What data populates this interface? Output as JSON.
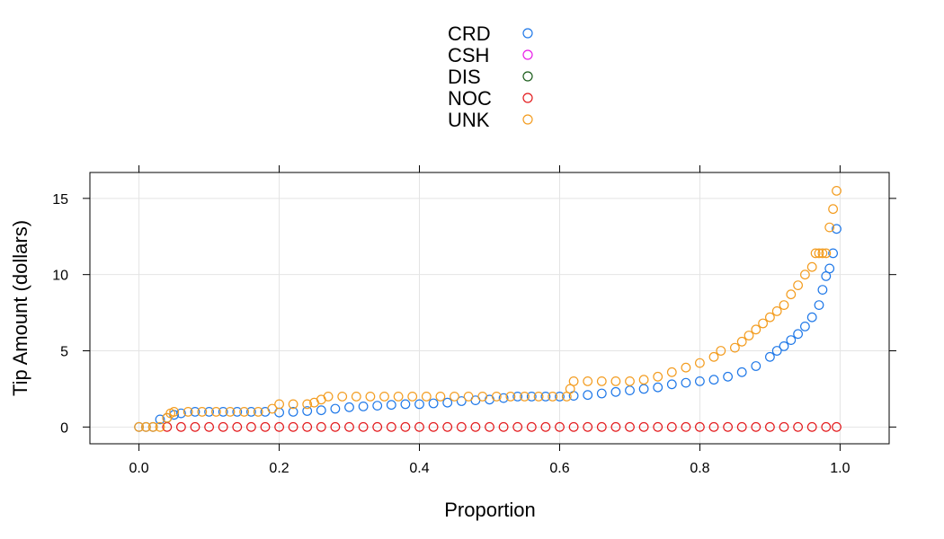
{
  "chart_data": {
    "type": "scatter",
    "xlabel": "Proportion",
    "ylabel": "Tip Amount (dollars)",
    "xlim": [
      -0.07,
      1.07
    ],
    "ylim": [
      -1.1,
      16.7
    ],
    "x_ticks": [
      0.0,
      0.2,
      0.4,
      0.6,
      0.8,
      1.0
    ],
    "x_tick_labels": [
      "0.0",
      "0.2",
      "0.4",
      "0.6",
      "0.8",
      "1.0"
    ],
    "y_ticks": [
      0,
      5,
      10,
      15
    ],
    "y_tick_labels": [
      "0",
      "5",
      "10",
      "15"
    ],
    "grid": true,
    "legend_position": "top",
    "series": [
      {
        "name": "CRD",
        "color": "#1f78e8",
        "points": [
          [
            0.0,
            0.0
          ],
          [
            0.01,
            0.0
          ],
          [
            0.02,
            0.0
          ],
          [
            0.03,
            0.5
          ],
          [
            0.04,
            0.6
          ],
          [
            0.05,
            0.8
          ],
          [
            0.06,
            0.9
          ],
          [
            0.08,
            1.0
          ],
          [
            0.1,
            1.0
          ],
          [
            0.12,
            1.0
          ],
          [
            0.14,
            1.0
          ],
          [
            0.16,
            1.0
          ],
          [
            0.18,
            1.0
          ],
          [
            0.2,
            0.95
          ],
          [
            0.22,
            1.0
          ],
          [
            0.24,
            1.05
          ],
          [
            0.26,
            1.1
          ],
          [
            0.28,
            1.2
          ],
          [
            0.3,
            1.3
          ],
          [
            0.32,
            1.35
          ],
          [
            0.34,
            1.4
          ],
          [
            0.36,
            1.45
          ],
          [
            0.38,
            1.5
          ],
          [
            0.4,
            1.5
          ],
          [
            0.42,
            1.55
          ],
          [
            0.44,
            1.6
          ],
          [
            0.46,
            1.7
          ],
          [
            0.48,
            1.75
          ],
          [
            0.5,
            1.8
          ],
          [
            0.52,
            1.9
          ],
          [
            0.54,
            2.0
          ],
          [
            0.56,
            2.0
          ],
          [
            0.58,
            2.0
          ],
          [
            0.6,
            2.0
          ],
          [
            0.62,
            2.05
          ],
          [
            0.64,
            2.1
          ],
          [
            0.66,
            2.2
          ],
          [
            0.68,
            2.3
          ],
          [
            0.7,
            2.4
          ],
          [
            0.72,
            2.5
          ],
          [
            0.74,
            2.6
          ],
          [
            0.76,
            2.8
          ],
          [
            0.78,
            2.9
          ],
          [
            0.8,
            3.0
          ],
          [
            0.82,
            3.1
          ],
          [
            0.84,
            3.3
          ],
          [
            0.86,
            3.6
          ],
          [
            0.88,
            4.0
          ],
          [
            0.9,
            4.6
          ],
          [
            0.91,
            5.0
          ],
          [
            0.92,
            5.3
          ],
          [
            0.93,
            5.7
          ],
          [
            0.94,
            6.1
          ],
          [
            0.95,
            6.6
          ],
          [
            0.96,
            7.2
          ],
          [
            0.97,
            8.0
          ],
          [
            0.975,
            9.0
          ],
          [
            0.98,
            9.9
          ],
          [
            0.985,
            10.4
          ],
          [
            0.99,
            11.4
          ],
          [
            0.995,
            13.0
          ]
        ]
      },
      {
        "name": "CSH",
        "color": "#e81ce8",
        "points": []
      },
      {
        "name": "DIS",
        "color": "#1a5c1a",
        "points": []
      },
      {
        "name": "NOC",
        "color": "#e31a1c",
        "points": [
          [
            0.04,
            0.0
          ],
          [
            0.06,
            0.0
          ],
          [
            0.08,
            0.0
          ],
          [
            0.1,
            0.0
          ],
          [
            0.12,
            0.0
          ],
          [
            0.14,
            0.0
          ],
          [
            0.16,
            0.0
          ],
          [
            0.18,
            0.0
          ],
          [
            0.2,
            0.0
          ],
          [
            0.22,
            0.0
          ],
          [
            0.24,
            0.0
          ],
          [
            0.26,
            0.0
          ],
          [
            0.28,
            0.0
          ],
          [
            0.3,
            0.0
          ],
          [
            0.32,
            0.0
          ],
          [
            0.34,
            0.0
          ],
          [
            0.36,
            0.0
          ],
          [
            0.38,
            0.0
          ],
          [
            0.4,
            0.0
          ],
          [
            0.42,
            0.0
          ],
          [
            0.44,
            0.0
          ],
          [
            0.46,
            0.0
          ],
          [
            0.48,
            0.0
          ],
          [
            0.5,
            0.0
          ],
          [
            0.52,
            0.0
          ],
          [
            0.54,
            0.0
          ],
          [
            0.56,
            0.0
          ],
          [
            0.58,
            0.0
          ],
          [
            0.6,
            0.0
          ],
          [
            0.62,
            0.0
          ],
          [
            0.64,
            0.0
          ],
          [
            0.66,
            0.0
          ],
          [
            0.68,
            0.0
          ],
          [
            0.7,
            0.0
          ],
          [
            0.72,
            0.0
          ],
          [
            0.74,
            0.0
          ],
          [
            0.76,
            0.0
          ],
          [
            0.78,
            0.0
          ],
          [
            0.8,
            0.0
          ],
          [
            0.82,
            0.0
          ],
          [
            0.84,
            0.0
          ],
          [
            0.86,
            0.0
          ],
          [
            0.88,
            0.0
          ],
          [
            0.9,
            0.0
          ],
          [
            0.92,
            0.0
          ],
          [
            0.94,
            0.0
          ],
          [
            0.96,
            0.0
          ],
          [
            0.98,
            0.0
          ],
          [
            0.995,
            0.0
          ]
        ]
      },
      {
        "name": "UNK",
        "color": "#f39c1f",
        "points": [
          [
            0.0,
            0.0
          ],
          [
            0.01,
            0.0
          ],
          [
            0.02,
            0.0
          ],
          [
            0.03,
            0.0
          ],
          [
            0.04,
            0.6
          ],
          [
            0.045,
            0.9
          ],
          [
            0.05,
            1.0
          ],
          [
            0.07,
            1.0
          ],
          [
            0.09,
            1.0
          ],
          [
            0.11,
            1.0
          ],
          [
            0.13,
            1.0
          ],
          [
            0.15,
            1.0
          ],
          [
            0.17,
            1.0
          ],
          [
            0.19,
            1.2
          ],
          [
            0.2,
            1.5
          ],
          [
            0.22,
            1.5
          ],
          [
            0.24,
            1.5
          ],
          [
            0.25,
            1.6
          ],
          [
            0.26,
            1.8
          ],
          [
            0.27,
            2.0
          ],
          [
            0.29,
            2.0
          ],
          [
            0.31,
            2.0
          ],
          [
            0.33,
            2.0
          ],
          [
            0.35,
            2.0
          ],
          [
            0.37,
            2.0
          ],
          [
            0.39,
            2.0
          ],
          [
            0.41,
            2.0
          ],
          [
            0.43,
            2.0
          ],
          [
            0.45,
            2.0
          ],
          [
            0.47,
            2.0
          ],
          [
            0.49,
            2.0
          ],
          [
            0.51,
            2.0
          ],
          [
            0.53,
            2.0
          ],
          [
            0.55,
            2.0
          ],
          [
            0.57,
            2.0
          ],
          [
            0.59,
            2.0
          ],
          [
            0.61,
            2.0
          ],
          [
            0.615,
            2.5
          ],
          [
            0.62,
            3.0
          ],
          [
            0.64,
            3.0
          ],
          [
            0.66,
            3.0
          ],
          [
            0.68,
            3.0
          ],
          [
            0.7,
            3.0
          ],
          [
            0.72,
            3.1
          ],
          [
            0.74,
            3.3
          ],
          [
            0.76,
            3.6
          ],
          [
            0.78,
            3.9
          ],
          [
            0.8,
            4.2
          ],
          [
            0.82,
            4.6
          ],
          [
            0.83,
            5.0
          ],
          [
            0.85,
            5.2
          ],
          [
            0.86,
            5.6
          ],
          [
            0.87,
            6.0
          ],
          [
            0.88,
            6.4
          ],
          [
            0.89,
            6.8
          ],
          [
            0.9,
            7.2
          ],
          [
            0.91,
            7.6
          ],
          [
            0.92,
            8.0
          ],
          [
            0.93,
            8.7
          ],
          [
            0.94,
            9.3
          ],
          [
            0.95,
            10.0
          ],
          [
            0.96,
            10.5
          ],
          [
            0.965,
            11.4
          ],
          [
            0.97,
            11.4
          ],
          [
            0.975,
            11.4
          ],
          [
            0.98,
            11.4
          ],
          [
            0.985,
            13.1
          ],
          [
            0.99,
            14.3
          ],
          [
            0.995,
            15.5
          ]
        ]
      }
    ]
  }
}
